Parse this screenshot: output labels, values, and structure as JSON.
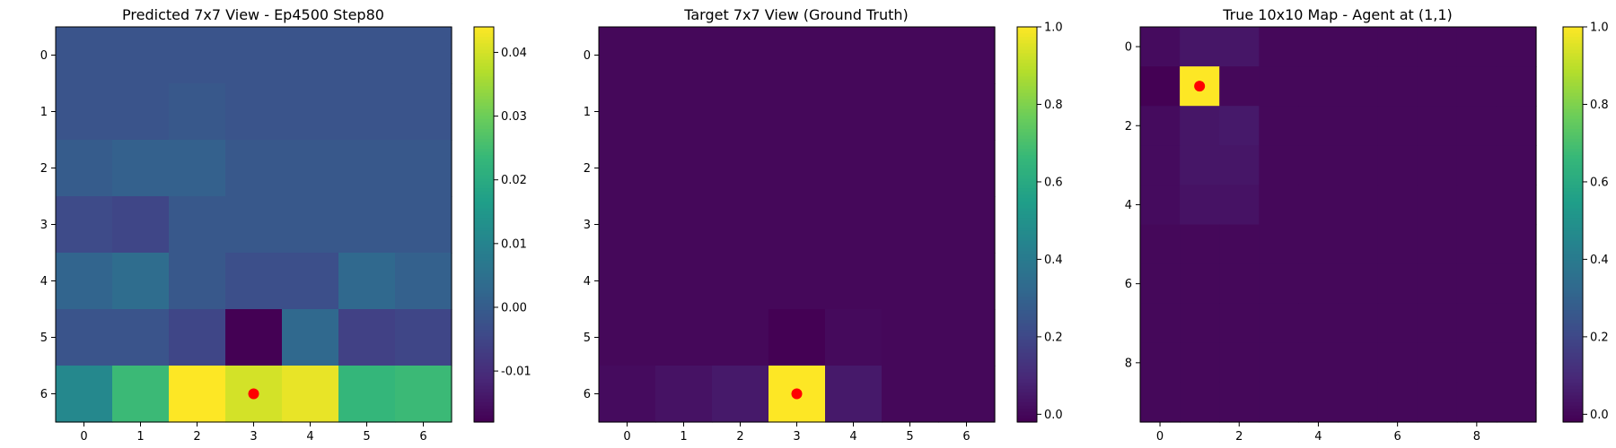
{
  "chart_data": [
    {
      "type": "heatmap",
      "title": "Predicted 7x7 View - Ep4500 Step80",
      "x_ticks": [
        "0",
        "1",
        "2",
        "3",
        "4",
        "5",
        "6"
      ],
      "y_ticks": [
        "0",
        "1",
        "2",
        "3",
        "4",
        "5",
        "6"
      ],
      "values": [
        [
          -0.002,
          -0.002,
          -0.002,
          -0.002,
          -0.002,
          -0.002,
          -0.002
        ],
        [
          -0.002,
          -0.002,
          -0.001,
          -0.002,
          -0.002,
          -0.002,
          -0.002
        ],
        [
          0.0,
          0.001,
          0.001,
          -0.001,
          -0.001,
          -0.001,
          -0.001
        ],
        [
          -0.004,
          -0.005,
          -0.001,
          -0.001,
          -0.001,
          -0.001,
          -0.001
        ],
        [
          0.002,
          0.004,
          -0.001,
          -0.003,
          -0.003,
          0.003,
          0.001
        ],
        [
          -0.002,
          -0.002,
          -0.005,
          -0.018,
          0.003,
          -0.006,
          -0.005
        ],
        [
          0.011,
          0.024,
          0.044,
          0.04,
          0.042,
          0.023,
          0.024
        ]
      ],
      "colorbar": {
        "min": -0.018,
        "max": 0.044,
        "ticks": [
          "-0.01",
          "0.00",
          "0.01",
          "0.02",
          "0.03",
          "0.04"
        ],
        "tick_values": [
          -0.01,
          0.0,
          0.01,
          0.02,
          0.03,
          0.04
        ]
      },
      "colormap": "viridis",
      "agent_marker": {
        "x": 3,
        "y": 6,
        "color": "#ff0000"
      }
    },
    {
      "type": "heatmap",
      "title": "Target 7x7 View (Ground Truth)",
      "x_ticks": [
        "0",
        "1",
        "2",
        "3",
        "4",
        "5",
        "6"
      ],
      "y_ticks": [
        "0",
        "1",
        "2",
        "3",
        "4",
        "5",
        "6"
      ],
      "values": [
        [
          0,
          0,
          0,
          0,
          0,
          0,
          0
        ],
        [
          0,
          0,
          0,
          0,
          0,
          0,
          0
        ],
        [
          0,
          0,
          0,
          0,
          0,
          0,
          0
        ],
        [
          0,
          0,
          0,
          0,
          0,
          0,
          0
        ],
        [
          0,
          0,
          0,
          0,
          0,
          0,
          0
        ],
        [
          0,
          0,
          0,
          -0.02,
          0.005,
          0,
          0
        ],
        [
          0.01,
          0.03,
          0.05,
          1.0,
          0.05,
          0,
          0
        ]
      ],
      "colorbar": {
        "min": -0.02,
        "max": 1.0,
        "ticks": [
          "0.0",
          "0.2",
          "0.4",
          "0.6",
          "0.8",
          "1.0"
        ],
        "tick_values": [
          0,
          0.2,
          0.4,
          0.6,
          0.8,
          1.0
        ]
      },
      "colormap": "viridis",
      "agent_marker": {
        "x": 3,
        "y": 6,
        "color": "#ff0000"
      }
    },
    {
      "type": "heatmap",
      "title": "True 10x10 Map - Agent at (1,1)",
      "x_ticks": [
        "0",
        "2",
        "4",
        "6",
        "8"
      ],
      "x_tick_values": [
        0,
        2,
        4,
        6,
        8
      ],
      "y_ticks": [
        "0",
        "2",
        "4",
        "6",
        "8"
      ],
      "y_tick_values": [
        0,
        2,
        4,
        6,
        8
      ],
      "values": [
        [
          0.01,
          0.04,
          0.04,
          0,
          0,
          0,
          0,
          0,
          0,
          0
        ],
        [
          -0.02,
          1.0,
          0,
          0,
          0,
          0,
          0,
          0,
          0,
          0
        ],
        [
          0.01,
          0.04,
          0.05,
          0,
          0,
          0,
          0,
          0,
          0,
          0
        ],
        [
          0.01,
          0.04,
          0.04,
          0,
          0,
          0,
          0,
          0,
          0,
          0
        ],
        [
          0.01,
          0.03,
          0.03,
          0,
          0,
          0,
          0,
          0,
          0,
          0
        ],
        [
          0,
          0,
          0,
          0,
          0,
          0,
          0,
          0,
          0,
          0
        ],
        [
          0,
          0,
          0,
          0,
          0,
          0,
          0,
          0,
          0,
          0
        ],
        [
          0,
          0,
          0,
          0,
          0,
          0,
          0,
          0,
          0,
          0
        ],
        [
          0,
          0,
          0,
          0,
          0,
          0,
          0,
          0,
          0,
          0
        ],
        [
          0,
          0,
          0,
          0,
          0,
          0,
          0,
          0,
          0,
          0
        ]
      ],
      "colorbar": {
        "min": -0.02,
        "max": 1.0,
        "ticks": [
          "0.0",
          "0.2",
          "0.4",
          "0.6",
          "0.8",
          "1.0"
        ],
        "tick_values": [
          0,
          0.2,
          0.4,
          0.6,
          0.8,
          1.0
        ]
      },
      "colormap": "viridis",
      "agent_marker": {
        "x": 1,
        "y": 1,
        "color": "#ff0000"
      }
    }
  ]
}
